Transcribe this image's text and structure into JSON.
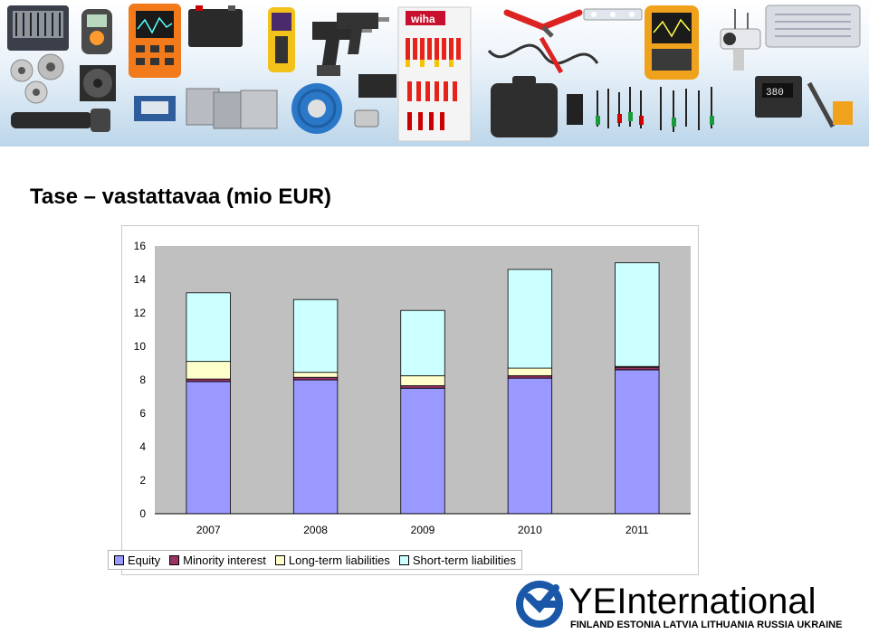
{
  "header": {
    "title": "Tase – vastattavaa (mio EUR)"
  },
  "banner": {
    "products": [
      "screwdriver-set",
      "test-meter",
      "oscilloscope",
      "battery",
      "thermal-camera",
      "cordless-drill",
      "tweezers",
      "screwdriver-display",
      "pliers",
      "led-module",
      "cable",
      "scope-meter",
      "ip-camera",
      "power-supply",
      "solder-wire",
      "cooling-fan",
      "heatsink",
      "power-supplies",
      "cable-reel",
      "connector",
      "flashlight",
      "tool-case",
      "test-leads",
      "soldering-station"
    ],
    "display_brand": "wiha"
  },
  "chart_data": {
    "type": "bar",
    "stacked": true,
    "categories": [
      "2007",
      "2008",
      "2009",
      "2010",
      "2011"
    ],
    "series": [
      {
        "name": "Equity",
        "color": "#9999ff",
        "values": [
          7.9,
          8.0,
          7.5,
          8.1,
          8.6
        ]
      },
      {
        "name": "Minority interest",
        "color": "#993366",
        "values": [
          0.15,
          0.15,
          0.15,
          0.15,
          0.15
        ]
      },
      {
        "name": "Long-term liabilities",
        "color": "#ffffcc",
        "values": [
          1.05,
          0.3,
          0.6,
          0.45,
          0.05
        ]
      },
      {
        "name": "Short-term liabilities",
        "color": "#ccffff",
        "values": [
          4.1,
          4.35,
          3.9,
          5.9,
          6.2
        ]
      }
    ],
    "ylim": [
      0,
      16
    ],
    "yticks": [
      "0",
      "2",
      "4",
      "6",
      "8",
      "10",
      "12",
      "14",
      "16"
    ],
    "xlabel": "",
    "ylabel": "",
    "grid": false,
    "plot_background": "#c0c0c0",
    "legend_position": "bottom"
  },
  "logo": {
    "name": "YEInternational",
    "tagline": "FINLAND  ESTONIA  LATVIA  LITHUANIA  RUSSIA  UKRAINE",
    "icon_color": "#1a57a8"
  }
}
